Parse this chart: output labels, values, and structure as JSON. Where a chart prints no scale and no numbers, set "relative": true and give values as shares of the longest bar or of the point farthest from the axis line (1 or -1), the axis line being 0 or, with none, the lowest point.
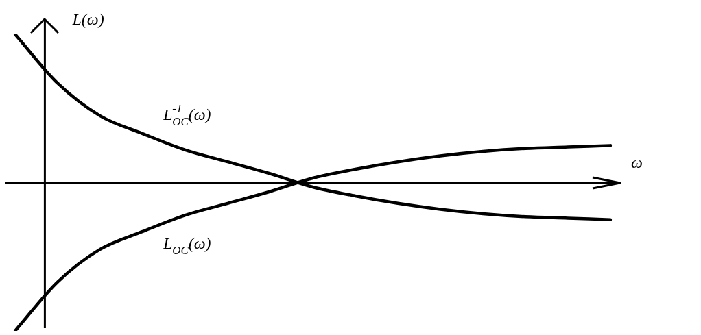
{
  "chart_data": {
    "type": "line",
    "relative": true,
    "ylabel": "L(ω)",
    "xlabel": "ω",
    "legend": false,
    "categories": [
      null,
      null,
      null,
      null,
      null,
      null,
      null,
      null,
      null,
      null,
      null,
      null,
      null,
      null,
      null
    ],
    "series": [
      {
        "name": "L$_{OC}$$^{-1}$(ω)",
        "color": "#000000",
        "values": [
          1,
          0.67,
          0.45,
          0.33,
          0.22,
          0.14,
          0.06,
          -0.03,
          -0.09,
          -0.14,
          -0.18,
          -0.21,
          -0.23,
          -0.24,
          -0.25
        ]
      },
      {
        "name": "L$_{OC}$(ω)",
        "color": "#000000",
        "values": [
          -1,
          -0.67,
          -0.45,
          -0.33,
          -0.22,
          -0.14,
          -0.06,
          0.03,
          0.09,
          0.14,
          0.18,
          0.21,
          0.23,
          0.24,
          0.25
        ]
      }
    ]
  }
}
